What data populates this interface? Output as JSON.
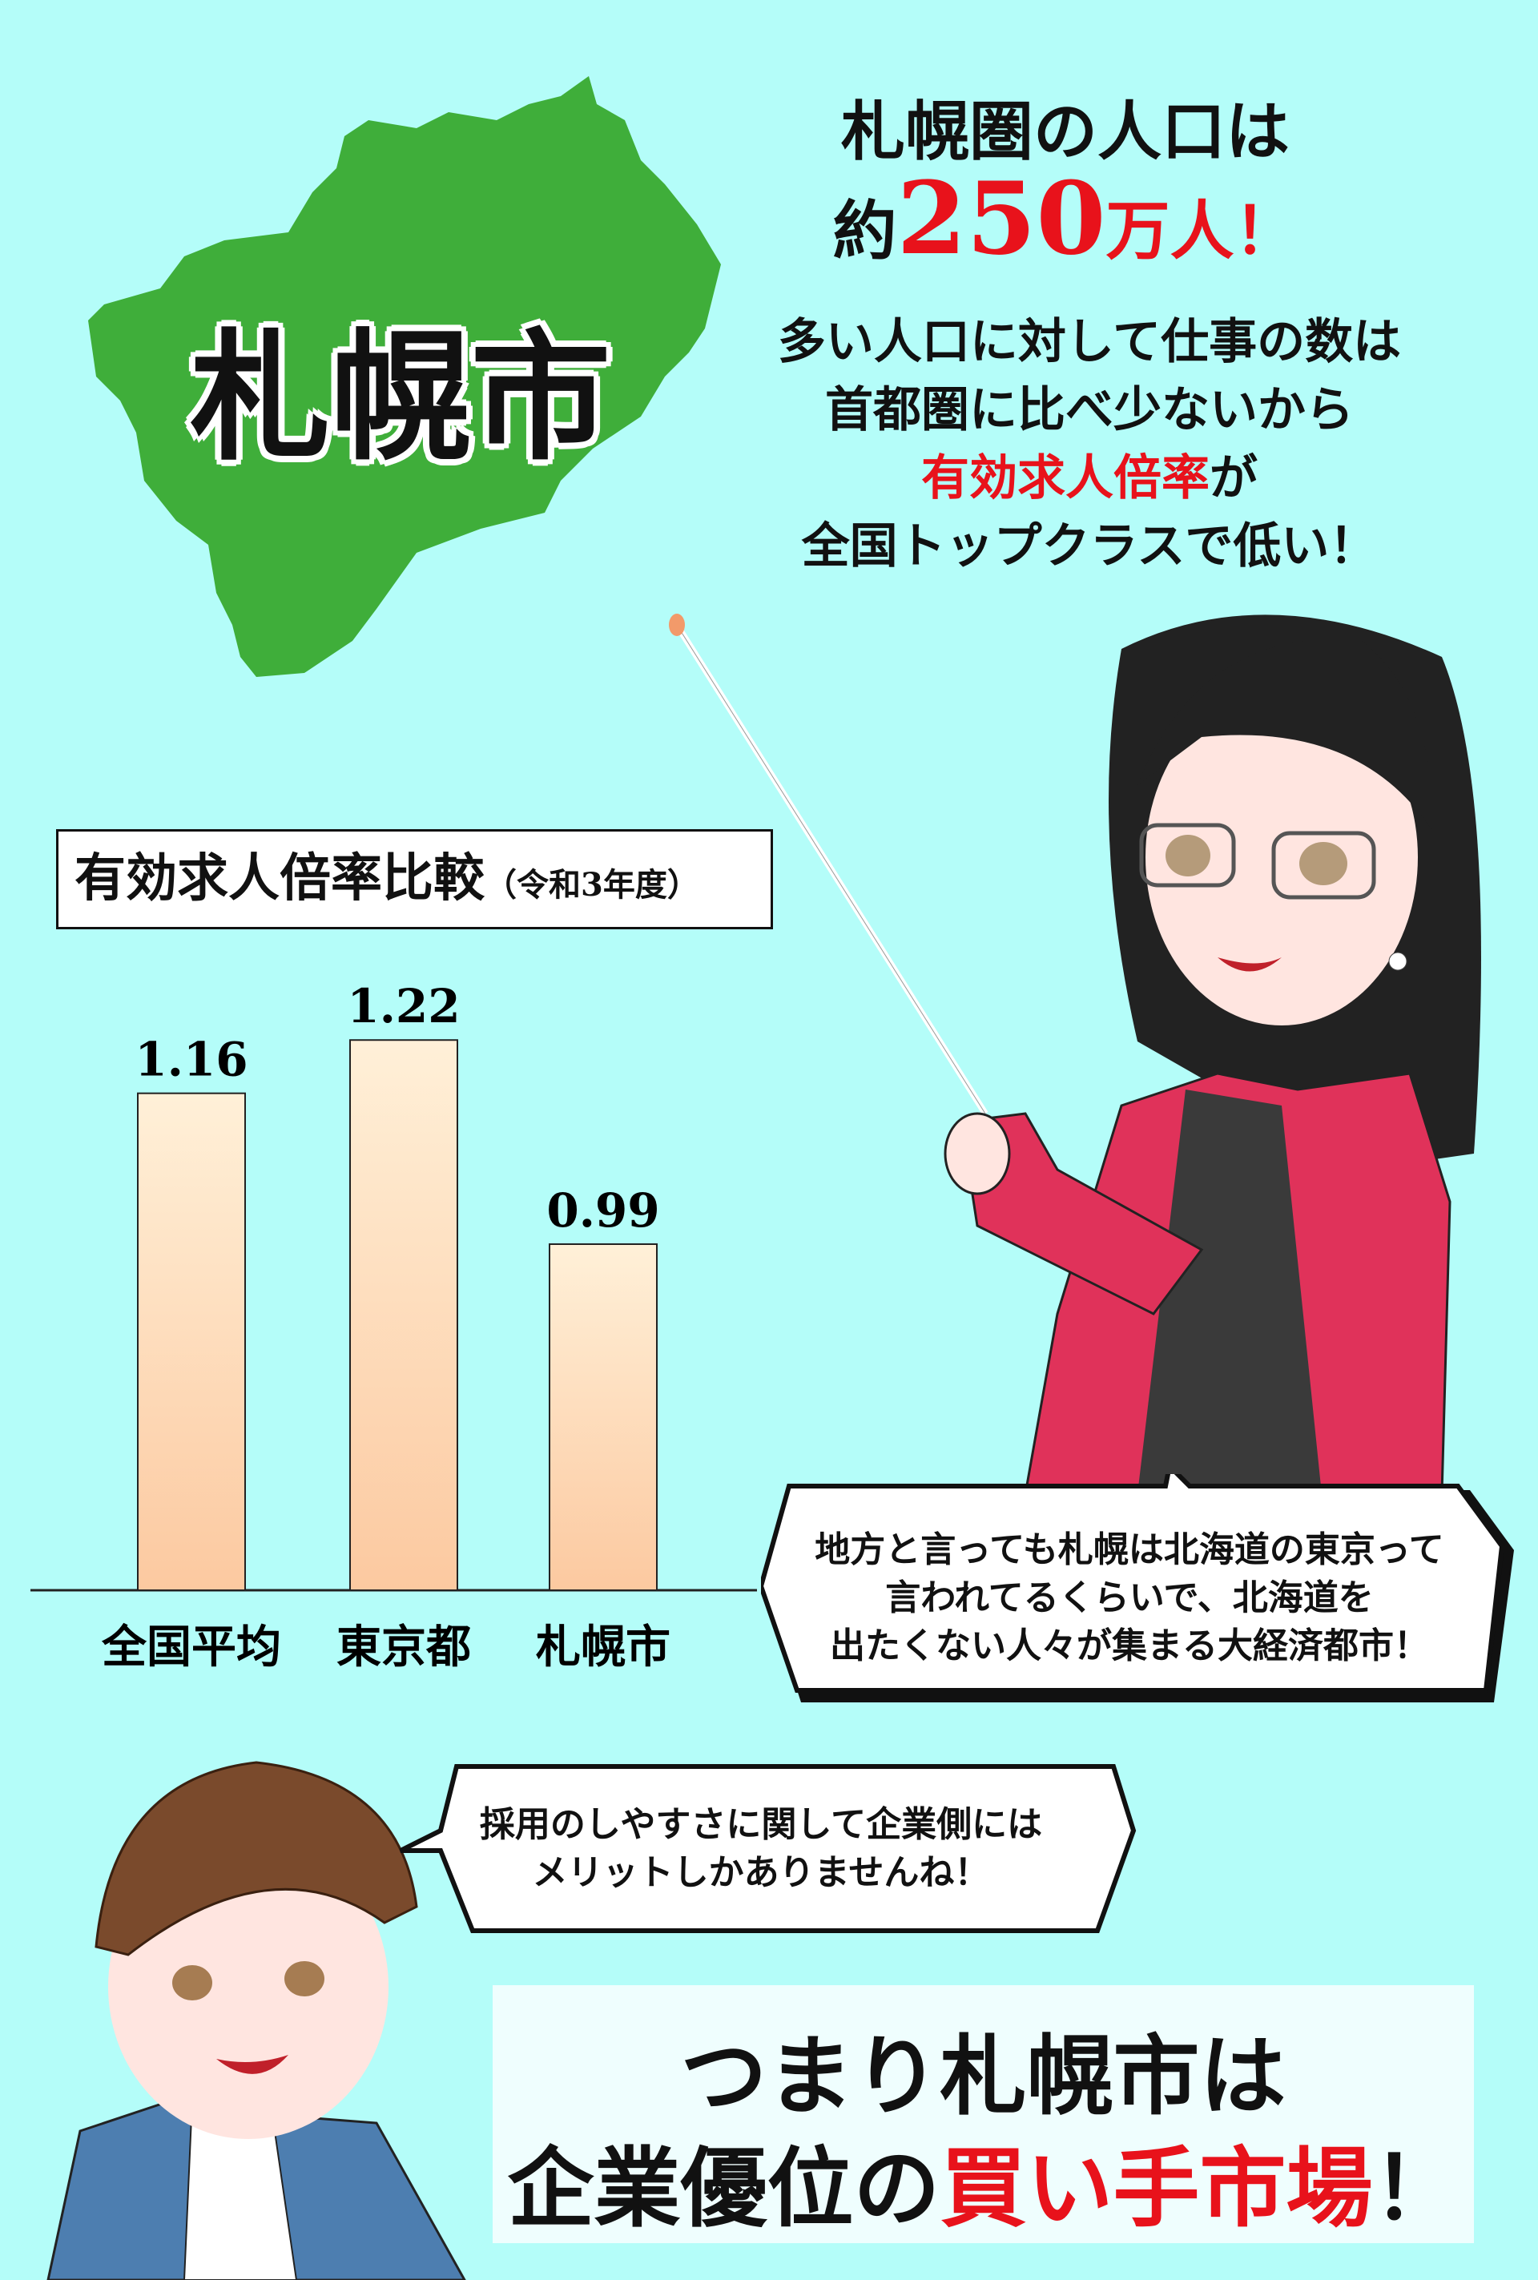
{
  "map": {
    "label": "札幌市",
    "color": "#3fae3a"
  },
  "headline": {
    "line1": "札幌圏の人口は",
    "prefix": "約",
    "number": "250",
    "suffix": "万人！"
  },
  "paragraph": {
    "line1": "多い人口に対して仕事の数は",
    "line2": "首都圏に比べ少ないから",
    "line3_red": "有効求人倍率",
    "line3_rest": "が",
    "line4": "全国トップクラスで低い！"
  },
  "chart_data": {
    "type": "bar",
    "title": "有効求人倍率比較",
    "subtitle": "（令和3年度）",
    "categories": [
      "全国平均",
      "東京都",
      "札幌市"
    ],
    "values": [
      1.16,
      1.22,
      0.99
    ],
    "value_labels": [
      "1.16",
      "1.22",
      "0.99"
    ],
    "ylim": [
      0.6,
      1.25
    ],
    "grid": false,
    "bar_color_top": "#fff0d8",
    "bar_color_bottom": "#fcc9a0"
  },
  "bubbles": {
    "woman": [
      "地方と言っても札幌は北海道の東京って",
      "言われてるくらいで、北海道を",
      "出たくない人々が集まる大経済都市！"
    ],
    "man": [
      "採用のしやすさに関して企業側には",
      "メリットしかありませんね！"
    ]
  },
  "conclusion": {
    "line1": "つまり札幌市は",
    "line2_black": "企業優位の",
    "line2_red": "買い手市場",
    "line2_end": "！"
  },
  "colors": {
    "background": "#b4fdf9",
    "accent_red": "#e8121b",
    "jacket": "#e0325a"
  }
}
